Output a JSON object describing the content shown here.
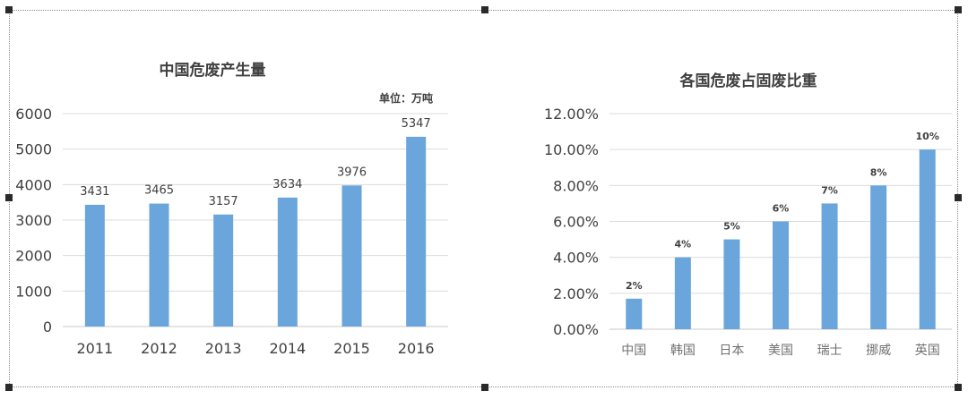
{
  "chart_data": [
    {
      "type": "bar",
      "title": "中国危废产生量",
      "unit_note": "单位：万吨",
      "categories": [
        "2011",
        "2012",
        "2013",
        "2014",
        "2015",
        "2016"
      ],
      "values": [
        3431,
        3465,
        3157,
        3634,
        3976,
        5347
      ],
      "value_labels": [
        "3431",
        "3465",
        "3157",
        "3634",
        "3976",
        "5347"
      ],
      "ylim": [
        0,
        6000
      ],
      "yticks": [
        "0",
        "1000",
        "2000",
        "3000",
        "4000",
        "5000",
        "6000"
      ],
      "xlabel": "",
      "ylabel": "",
      "grid": true,
      "bar_color": "#6aa6dc"
    },
    {
      "type": "bar",
      "title": "各国危废占固废比重",
      "categories": [
        "中国",
        "韩国",
        "日本",
        "美国",
        "瑞士",
        "挪威",
        "英国"
      ],
      "values": [
        1.7,
        4,
        5,
        6,
        7,
        8,
        10
      ],
      "value_labels": [
        "2%",
        "4%",
        "5%",
        "6%",
        "7%",
        "8%",
        "10%"
      ],
      "ylim": [
        0,
        12
      ],
      "yticks": [
        "0.00%",
        "2.00%",
        "4.00%",
        "6.00%",
        "8.00%",
        "10.00%",
        "12.00%"
      ],
      "xlabel": "",
      "ylabel": "",
      "grid": true,
      "bar_color": "#6aa6dc"
    }
  ]
}
